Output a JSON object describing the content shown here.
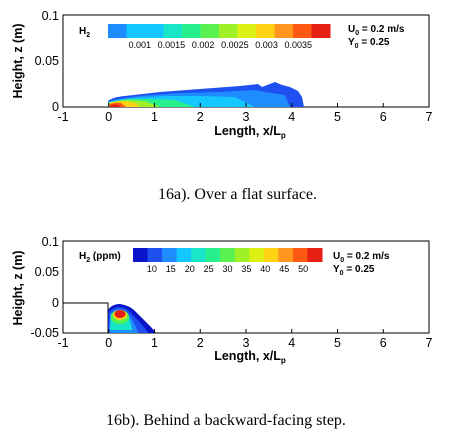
{
  "chart_data": [
    {
      "type": "heatmap",
      "caption": "16a). Over a flat surface.",
      "xlabel_main": "Length, x/L",
      "xlabel_sub": "p",
      "ylabel": "Height, z (m)",
      "xticks": [
        -1,
        0,
        1,
        2,
        3,
        4,
        5,
        6,
        7
      ],
      "yticks": [
        "0",
        "0.05",
        "0.1"
      ],
      "xlim": [
        -1,
        7
      ],
      "ylim": [
        0,
        0.1
      ],
      "legend_title": "H",
      "legend_title_sub": "2",
      "legend_levels": [
        "0.001",
        "0.0015",
        "0.002",
        "0.0025",
        "0.003",
        "0.0035"
      ],
      "params": [
        {
          "main": "U",
          "sub": "0",
          "rest": " = 0.2 m/s"
        },
        {
          "main": "Y",
          "sub": "0",
          "rest": " = 0.25"
        }
      ]
    },
    {
      "type": "heatmap",
      "caption": "16b). Behind a backward-facing step.",
      "xlabel_main": "Length, x/L",
      "xlabel_sub": "p",
      "ylabel": "Height, z (m)",
      "xticks": [
        -1,
        0,
        1,
        2,
        3,
        4,
        5,
        6,
        7
      ],
      "yticks": [
        "-0.05",
        "0",
        "0.05",
        "0.1"
      ],
      "xlim": [
        -1,
        7
      ],
      "ylim": [
        -0.05,
        0.1
      ],
      "legend_title": "H",
      "legend_title_sub": "2",
      "legend_title_rest": " (ppm)",
      "legend_levels": [
        "10",
        "15",
        "20",
        "25",
        "30",
        "35",
        "40",
        "45",
        "50"
      ],
      "params": [
        {
          "main": "U",
          "sub": "0",
          "rest": " = 0.2 m/s"
        },
        {
          "main": "Y",
          "sub": "0",
          "rest": " = 0.25"
        }
      ]
    }
  ],
  "colormap": [
    "#0a14c8",
    "#1e50f0",
    "#1e8cff",
    "#14c8ff",
    "#19e6c8",
    "#28f08c",
    "#5af050",
    "#a0f028",
    "#dcf014",
    "#ffd214",
    "#ff961e",
    "#ff5a14",
    "#e61e14"
  ]
}
